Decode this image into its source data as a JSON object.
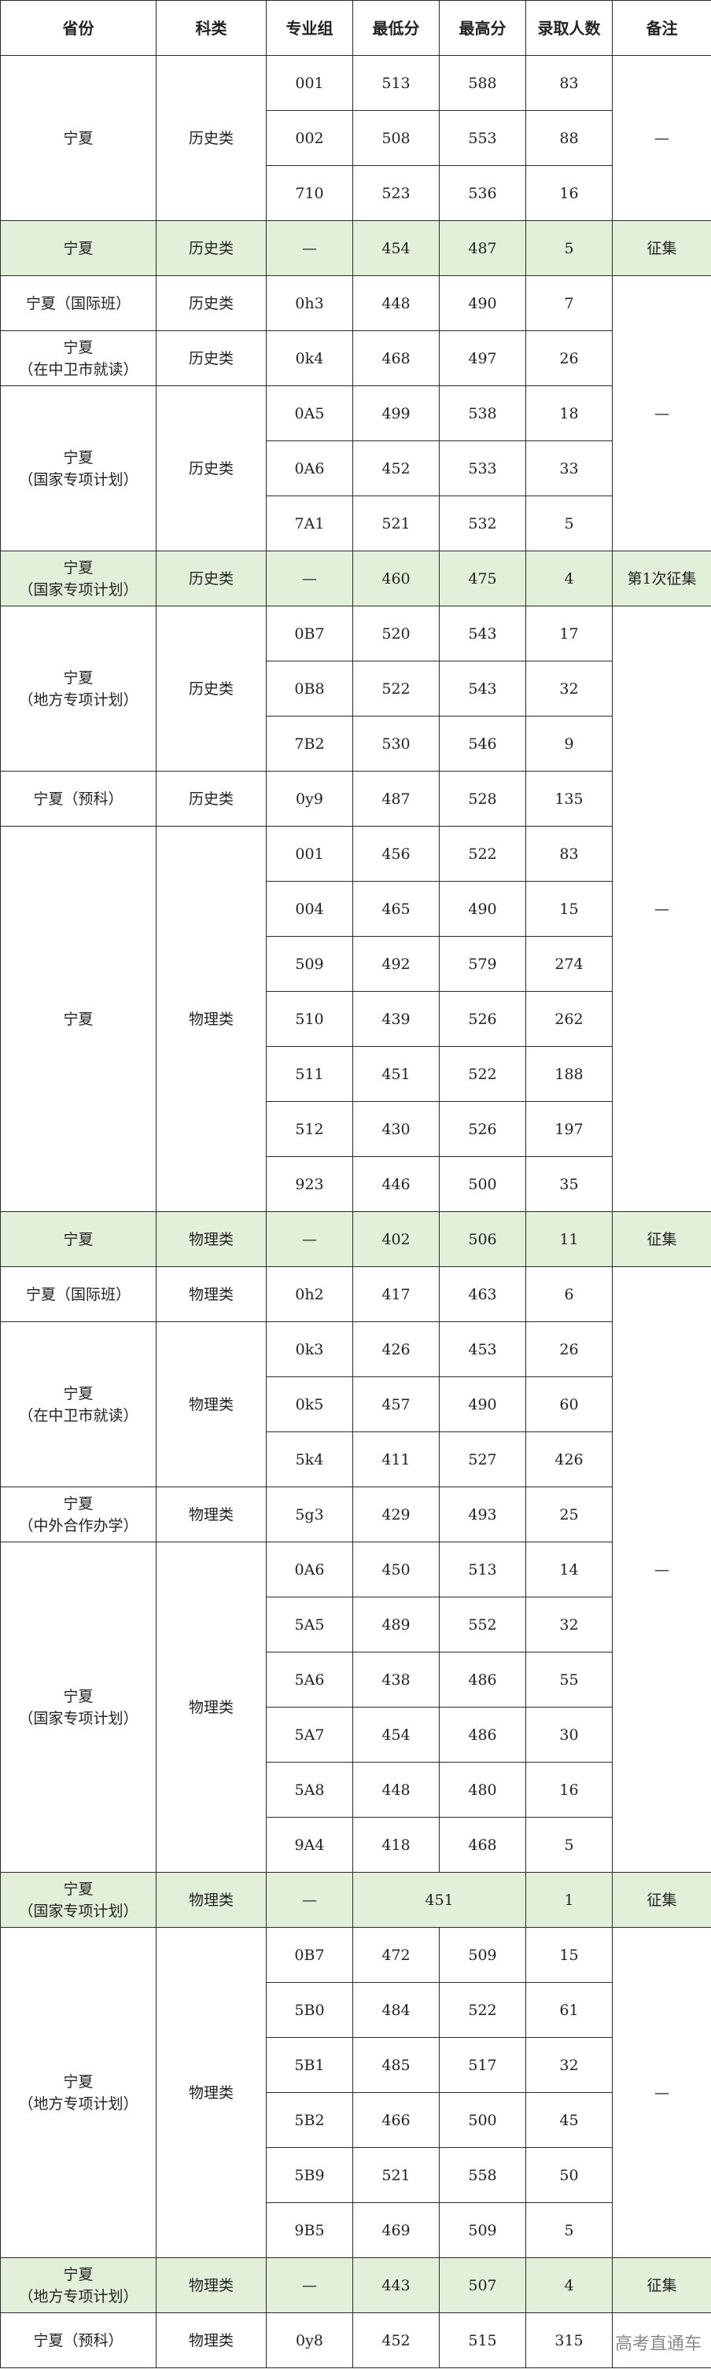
{
  "header": [
    "省份",
    "科类",
    "专业组",
    "最低分",
    "最高分",
    "录取人数",
    "备注"
  ],
  "highlight_color": "#e2f0d9",
  "groups": [
    {
      "province": "宁夏",
      "subject": "历史类",
      "rows": [
        [
          "001",
          "513",
          "588",
          "83"
        ],
        [
          "002",
          "508",
          "553",
          "88"
        ],
        [
          "710",
          "523",
          "536",
          "16"
        ]
      ]
    },
    {
      "province": "宁夏",
      "subject": "历史类",
      "highlight": true,
      "rows": [
        [
          "—",
          "454",
          "487",
          "5"
        ]
      ]
    },
    {
      "province": "宁夏（国际班）",
      "subject": "历史类",
      "rows": [
        [
          "0h3",
          "448",
          "490",
          "7"
        ]
      ]
    },
    {
      "province": "宁夏\n（在中卫市就读）",
      "subject": "历史类",
      "rows": [
        [
          "0k4",
          "468",
          "497",
          "26"
        ]
      ]
    },
    {
      "province": "宁夏\n（国家专项计划）",
      "subject": "历史类",
      "rows": [
        [
          "0A5",
          "499",
          "538",
          "18"
        ],
        [
          "0A6",
          "452",
          "533",
          "33"
        ],
        [
          "7A1",
          "521",
          "532",
          "5"
        ]
      ]
    },
    {
      "province": "宁夏\n（国家专项计划）",
      "subject": "历史类",
      "highlight": true,
      "rows": [
        [
          "—",
          "460",
          "475",
          "4"
        ]
      ]
    },
    {
      "province": "宁夏\n（地方专项计划）",
      "subject": "历史类",
      "rows": [
        [
          "0B7",
          "520",
          "543",
          "17"
        ],
        [
          "0B8",
          "522",
          "543",
          "32"
        ],
        [
          "7B2",
          "530",
          "546",
          "9"
        ]
      ]
    },
    {
      "province": "宁夏（预科）",
      "subject": "历史类",
      "rows": [
        [
          "0y9",
          "487",
          "528",
          "135"
        ]
      ]
    },
    {
      "province": "宁夏",
      "subject": "物理类",
      "rows": [
        [
          "001",
          "456",
          "522",
          "83"
        ],
        [
          "004",
          "465",
          "490",
          "15"
        ],
        [
          "509",
          "492",
          "579",
          "274"
        ],
        [
          "510",
          "439",
          "526",
          "262"
        ],
        [
          "511",
          "451",
          "522",
          "188"
        ],
        [
          "512",
          "430",
          "526",
          "197"
        ],
        [
          "923",
          "446",
          "500",
          "35"
        ]
      ]
    },
    {
      "province": "宁夏",
      "subject": "物理类",
      "highlight": true,
      "rows": [
        [
          "—",
          "402",
          "506",
          "11"
        ]
      ]
    },
    {
      "province": "宁夏（国际班）",
      "subject": "物理类",
      "rows": [
        [
          "0h2",
          "417",
          "463",
          "6"
        ]
      ]
    },
    {
      "province": "宁夏\n（在中卫市就读）",
      "subject": "物理类",
      "rows": [
        [
          "0k3",
          "426",
          "453",
          "26"
        ],
        [
          "0k5",
          "457",
          "490",
          "60"
        ],
        [
          "5k4",
          "411",
          "527",
          "426"
        ]
      ]
    },
    {
      "province": "宁夏\n（中外合作办学）",
      "subject": "物理类",
      "rows": [
        [
          "5g3",
          "429",
          "493",
          "25"
        ]
      ]
    },
    {
      "province": "宁夏\n（国家专项计划）",
      "subject": "物理类",
      "rows": [
        [
          "0A6",
          "450",
          "513",
          "14"
        ],
        [
          "5A5",
          "489",
          "552",
          "32"
        ],
        [
          "5A6",
          "438",
          "486",
          "55"
        ],
        [
          "5A7",
          "454",
          "486",
          "30"
        ],
        [
          "5A8",
          "448",
          "480",
          "16"
        ],
        [
          "9A4",
          "418",
          "468",
          "5"
        ]
      ]
    },
    {
      "province": "宁夏\n（国家专项计划）",
      "subject": "物理类",
      "highlight": true,
      "merged_score": true,
      "rows": [
        [
          "—",
          "451",
          "451",
          "1"
        ]
      ]
    },
    {
      "province": "宁夏\n（地方专项计划）",
      "subject": "物理类",
      "rows": [
        [
          "0B7",
          "472",
          "509",
          "15"
        ],
        [
          "5B0",
          "484",
          "522",
          "61"
        ],
        [
          "5B1",
          "485",
          "517",
          "32"
        ],
        [
          "5B2",
          "466",
          "500",
          "45"
        ],
        [
          "5B9",
          "521",
          "558",
          "50"
        ],
        [
          "9B5",
          "469",
          "509",
          "5"
        ]
      ]
    },
    {
      "province": "宁夏\n（地方专项计划）",
      "subject": "物理类",
      "highlight": true,
      "rows": [
        [
          "—",
          "443",
          "507",
          "4"
        ]
      ]
    },
    {
      "province": "宁夏（预科）",
      "subject": "物理类",
      "rows": [
        [
          "0y8",
          "452",
          "515",
          "315"
        ]
      ]
    }
  ],
  "remarks": [
    {
      "text": "—",
      "rows": 3
    },
    {
      "text": "征集",
      "rows": 1
    },
    {
      "text": "—",
      "rows": 5
    },
    {
      "text": "第1次征集",
      "rows": 1
    },
    {
      "text": "—",
      "rows": 11
    },
    {
      "text": "征集",
      "rows": 1
    },
    {
      "text": "—",
      "rows": 11
    },
    {
      "text": "征集",
      "rows": 1
    },
    {
      "text": "—",
      "rows": 6
    },
    {
      "text": "征集",
      "rows": 1
    },
    {
      "text": "",
      "rows": 1
    }
  ],
  "watermark": "高考直通车"
}
